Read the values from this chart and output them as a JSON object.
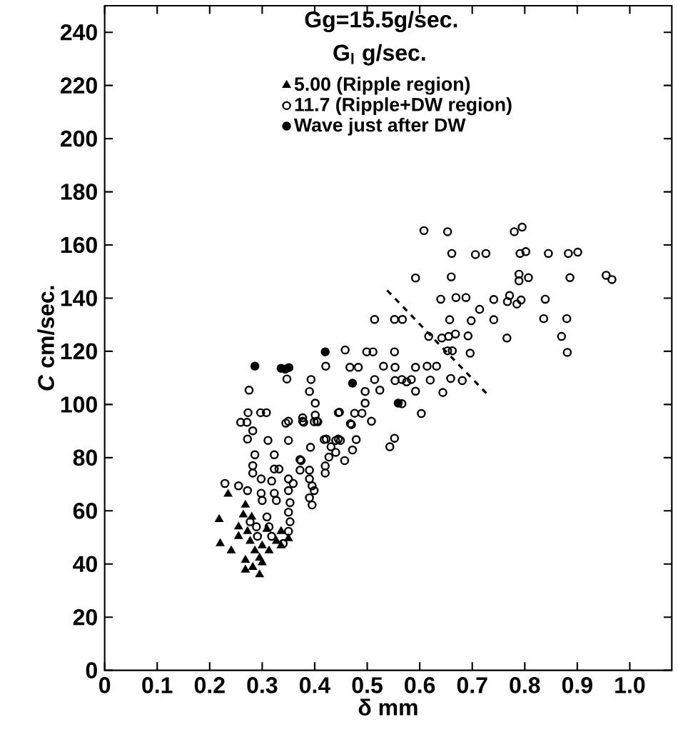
{
  "chart_data": {
    "type": "scatter",
    "xlabel": "δ mm",
    "ylabel": "*C* cm/sec.",
    "legend_title": "G$_{l}$ g/sec.",
    "annotations": [
      "Gg=15.5g/sec."
    ],
    "legend": "top",
    "xlim": [
      0,
      1.08
    ],
    "ylim": [
      0,
      250
    ],
    "xticks": [
      0,
      0.1,
      0.2,
      0.3,
      0.4,
      0.5,
      0.6,
      0.7,
      0.8,
      0.9,
      {
        "value": 1.0,
        "label": "1.0"
      }
    ],
    "yticks": [
      0,
      20,
      40,
      60,
      80,
      100,
      120,
      140,
      160,
      180,
      200,
      220,
      240
    ],
    "series": [
      {
        "name": "5.00 (Ripple region)",
        "color": "#000000",
        "marker": "triangle",
        "x": [
          0.235,
          0.218,
          0.22,
          0.241,
          0.255,
          0.255,
          0.268,
          0.264,
          0.272,
          0.277,
          0.286,
          0.3,
          0.268,
          0.268,
          0.282,
          0.295,
          0.3,
          0.295,
          0.313,
          0.327,
          0.336,
          0.35,
          0.309,
          0.336,
          0.28
        ],
        "values": [
          66.3,
          56.8,
          47.7,
          45,
          54,
          50.4,
          62.2,
          58.5,
          52.3,
          48.6,
          45,
          46.9,
          41.5,
          37.8,
          38.8,
          36,
          40.5,
          42.3,
          45,
          48.6,
          52.3,
          49.6,
          53.1,
          46.9,
          57.7
        ]
      },
      {
        "name": "11.7 (Ripple+DW region)",
        "color": "#000000",
        "marker": "open circle",
        "x": [
          0.608,
          0.653,
          0.78,
          0.795,
          0.661,
          0.706,
          0.726,
          0.791,
          0.802,
          0.845,
          0.883,
          0.901,
          0.592,
          0.66,
          0.789,
          0.789,
          0.807,
          0.886,
          0.955,
          0.966,
          0.64,
          0.669,
          0.688,
          0.714,
          0.741,
          0.771,
          0.767,
          0.785,
          0.793,
          0.839,
          0.514,
          0.552,
          0.567,
          0.657,
          0.698,
          0.741,
          0.836,
          0.88,
          0.617,
          0.642,
          0.655,
          0.668,
          0.692,
          0.766,
          0.87,
          0.653,
          0.662,
          0.696,
          0.881,
          0.458,
          0.499,
          0.511,
          0.552,
          0.421,
          0.467,
          0.483,
          0.531,
          0.553,
          0.592,
          0.614,
          0.632,
          0.347,
          0.393,
          0.514,
          0.553,
          0.566,
          0.575,
          0.584,
          0.62,
          0.659,
          0.681,
          0.39,
          0.496,
          0.524,
          0.592,
          0.644,
          0.401,
          0.566,
          0.447,
          0.476,
          0.49,
          0.496,
          0.603,
          0.401,
          0.35,
          0.377,
          0.404,
          0.508,
          0.47,
          0.35,
          0.392,
          0.422,
          0.445,
          0.479,
          0.552,
          0.543,
          0.431,
          0.44,
          0.427,
          0.472,
          0.457,
          0.372,
          0.372,
          0.39,
          0.42,
          0.42,
          0.275,
          0.273,
          0.297,
          0.308,
          0.259,
          0.271,
          0.345,
          0.377,
          0.379,
          0.399,
          0.406,
          0.445,
          0.468,
          0.282,
          0.272,
          0.311,
          0.418,
          0.44,
          0.449,
          0.286,
          0.323,
          0.374,
          0.282,
          0.282,
          0.323,
          0.332,
          0.229,
          0.255,
          0.272,
          0.298,
          0.318,
          0.35,
          0.359,
          0.39,
          0.395,
          0.399,
          0.39,
          0.395,
          0.298,
          0.3,
          0.323,
          0.327,
          0.35,
          0.353,
          0.277,
          0.289,
          0.309,
          0.313,
          0.35,
          0.353,
          0.291,
          0.318,
          0.35,
          0.34
        ],
        "values": [
          165.4,
          165,
          165,
          166.7,
          156.8,
          156.4,
          156.8,
          156.8,
          157.5,
          156.8,
          156.8,
          157.3,
          147.6,
          148,
          149,
          146.5,
          147.7,
          147.7,
          148.6,
          147,
          139.6,
          140.2,
          140.2,
          135.8,
          139.5,
          141,
          138.7,
          137.8,
          139.3,
          139.6,
          132,
          132,
          132,
          131.9,
          131.5,
          131.9,
          132.3,
          132.3,
          125.6,
          125,
          125.6,
          126.5,
          125.8,
          125,
          125.6,
          120.2,
          120.2,
          119.3,
          119.6,
          120.5,
          119.8,
          119.8,
          119.8,
          114.4,
          114,
          114,
          114.4,
          114,
          114,
          114.4,
          114.4,
          109.6,
          109.4,
          109.4,
          109,
          109.4,
          108.5,
          109.4,
          109.2,
          109.8,
          109,
          104.9,
          104.9,
          105.4,
          105,
          104.5,
          100.5,
          100.3,
          97.1,
          96.7,
          96.7,
          100.5,
          96.6,
          96,
          93.7,
          93.7,
          93.7,
          93.7,
          92.4,
          86.5,
          83.9,
          87,
          87,
          86.8,
          87.3,
          84.1,
          84.1,
          82,
          80.2,
          82.9,
          78.9,
          79.3,
          75.3,
          75.3,
          76.9,
          74.2,
          105.4,
          96.9,
          96.9,
          96.9,
          93.3,
          93.3,
          93,
          95,
          93.3,
          93.5,
          93.5,
          96.9,
          92.8,
          90.1,
          87,
          86.5,
          86.8,
          86.5,
          86.5,
          81.1,
          81.1,
          78.9,
          77,
          74.2,
          75.7,
          75.7,
          70.3,
          69.4,
          67.6,
          72,
          71.2,
          72,
          70.3,
          72,
          69.4,
          67.6,
          64.9,
          62.2,
          66.6,
          63.9,
          66.6,
          63.9,
          67.6,
          63.1,
          55.9,
          54,
          57.7,
          54,
          59.5,
          55.9,
          50.4,
          50.4,
          52.3,
          47.7
        ]
      },
      {
        "name": "Wave just after DW",
        "color": "#000000",
        "marker": "circle",
        "x": [
          0.286,
          0.336,
          0.344,
          0.351,
          0.42,
          0.472,
          0.559
        ],
        "values": [
          114.4,
          113.6,
          113.3,
          113.9,
          119.8,
          108,
          100.5
        ]
      },
      {
        "type": "line",
        "color": "#000000",
        "marker": "none",
        "line_style": "dashed",
        "x": [
          0.538,
          0.728
        ],
        "values": [
          142.9,
          104
        ]
      }
    ]
  }
}
